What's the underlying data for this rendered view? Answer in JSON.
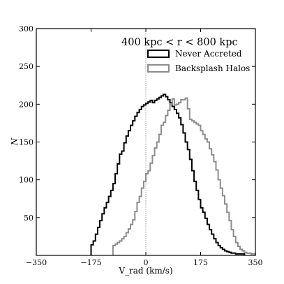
{
  "chart_data": {
    "type": "histogram",
    "annotation": "400 kpc < r < 800 kpc",
    "xlabel": "V_rad (km/s)",
    "ylabel": "N",
    "xlim": [
      -350,
      350
    ],
    "ylim": [
      0,
      300
    ],
    "xticks": [
      -350,
      -175,
      0,
      175,
      350
    ],
    "yticks": [
      50,
      100,
      150,
      200,
      250,
      300
    ],
    "reference_line_x": 0,
    "legend_position": "top-right",
    "bin_width": 7,
    "series": [
      {
        "name": "Never Accreted",
        "color": "#000000",
        "x_start": -175,
        "values": [
          14,
          19,
          28,
          37,
          46,
          55,
          63,
          70,
          78,
          86,
          95,
          108,
          121,
          134,
          138,
          149,
          158,
          165,
          172,
          178,
          184,
          189,
          193,
          197,
          199,
          201,
          203,
          205,
          202,
          205,
          207,
          209,
          211,
          213,
          210,
          206,
          202,
          197,
          193,
          188,
          182,
          173,
          162,
          150,
          140,
          127,
          112,
          98,
          86,
          74,
          63,
          57,
          49,
          41,
          34,
          28,
          22,
          17,
          13,
          10,
          8,
          6,
          5,
          4,
          3,
          3,
          2,
          2,
          2,
          2
        ]
      },
      {
        "name": "Backsplash Halos",
        "color": "#8c8c8c",
        "x_start": -105,
        "values": [
          13,
          15,
          17,
          19,
          22,
          25,
          30,
          35,
          41,
          47,
          58,
          70,
          78,
          89,
          98,
          108,
          112,
          122,
          132,
          142,
          150,
          160,
          172,
          176,
          185,
          192,
          200,
          207,
          199,
          200,
          202,
          206,
          206,
          208,
          194,
          180,
          178,
          176,
          174,
          172,
          165,
          160,
          154,
          150,
          141,
          133,
          124,
          113,
          100,
          89,
          79,
          68,
          57,
          46,
          34,
          25,
          17,
          12,
          8,
          6,
          4,
          3,
          3,
          2,
          2
        ]
      }
    ]
  }
}
